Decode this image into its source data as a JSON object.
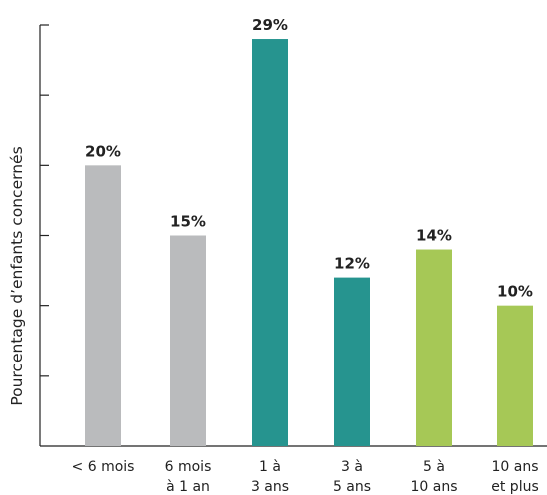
{
  "chart_data": {
    "type": "bar",
    "ylabel": "Pourcentage d’enfants concernés",
    "xlabel": "",
    "title": "",
    "ylim": [
      0,
      30
    ],
    "categories": [
      [
        "< 6 mois"
      ],
      [
        "6 mois",
        "à 1 an"
      ],
      [
        "1 à",
        "3 ans"
      ],
      [
        "3 à",
        "5 ans"
      ],
      [
        "5 à",
        "10 ans"
      ],
      [
        "10 ans",
        "et plus"
      ]
    ],
    "values": [
      20,
      15,
      29,
      12,
      14,
      10
    ],
    "value_labels": [
      "20%",
      "15%",
      "29%",
      "12%",
      "14%",
      "10%"
    ],
    "colors": [
      "#babbbd",
      "#babbbd",
      "#26948f",
      "#26948f",
      "#a6c856",
      "#a6c856"
    ],
    "grid": false,
    "legend": "none"
  }
}
